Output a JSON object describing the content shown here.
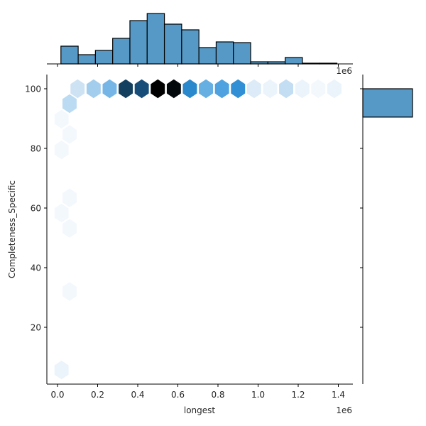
{
  "chart_data": {
    "type": "hexbin-jointplot",
    "title": "",
    "xlabel": "longest",
    "ylabel": "Completeness_Specific",
    "x_offset_text": "1e6",
    "top_offset_text": "1e6",
    "xlim": [
      -0.06,
      1.47
    ],
    "ylim": [
      1.0,
      104.8
    ],
    "x_scale_note": "x values in units of 1e6",
    "xticks": [
      0.0,
      0.2,
      0.4,
      0.6,
      0.8,
      1.0,
      1.2,
      1.4
    ],
    "xtick_labels": [
      "0.0",
      "0.2",
      "0.4",
      "0.6",
      "0.8",
      "1.0",
      "1.2",
      "1.4"
    ],
    "yticks": [
      20,
      40,
      60,
      80,
      100
    ],
    "ytick_labels": [
      "20",
      "40",
      "60",
      "80",
      "100"
    ],
    "grid": false,
    "hexbins": {
      "colormap": "Blues (light to dark, near-black max)",
      "cells": [
        {
          "x": 0.1,
          "y": 100.0,
          "color": "#cde2f3"
        },
        {
          "x": 0.18,
          "y": 100.0,
          "color": "#a3cdec"
        },
        {
          "x": 0.26,
          "y": 100.0,
          "color": "#76b6e6"
        },
        {
          "x": 0.34,
          "y": 100.0,
          "color": "#143f5f"
        },
        {
          "x": 0.42,
          "y": 100.0,
          "color": "#174e79"
        },
        {
          "x": 0.5,
          "y": 100.0,
          "color": "#000000"
        },
        {
          "x": 0.58,
          "y": 100.0,
          "color": "#03080c"
        },
        {
          "x": 0.66,
          "y": 100.0,
          "color": "#2a88cc"
        },
        {
          "x": 0.74,
          "y": 100.0,
          "color": "#66afe2"
        },
        {
          "x": 0.82,
          "y": 100.0,
          "color": "#4ea2df"
        },
        {
          "x": 0.9,
          "y": 100.0,
          "color": "#318fd5"
        },
        {
          "x": 0.98,
          "y": 100.0,
          "color": "#dcebf7"
        },
        {
          "x": 1.06,
          "y": 100.0,
          "color": "#ebf4fb"
        },
        {
          "x": 1.14,
          "y": 100.0,
          "color": "#c3ddf2"
        },
        {
          "x": 1.22,
          "y": 100.0,
          "color": "#ebf4fb"
        },
        {
          "x": 1.3,
          "y": 100.0,
          "color": "#f3f8fd"
        },
        {
          "x": 1.38,
          "y": 100.0,
          "color": "#ebf4fb"
        },
        {
          "x": 0.06,
          "y": 95.0,
          "color": "#badbf1"
        },
        {
          "x": 0.02,
          "y": 89.8,
          "color": "#f3f8fd"
        },
        {
          "x": 0.06,
          "y": 84.7,
          "color": "#f3f8fd"
        },
        {
          "x": 0.02,
          "y": 79.5,
          "color": "#f3f8fd"
        },
        {
          "x": 0.06,
          "y": 63.4,
          "color": "#f3f8fd"
        },
        {
          "x": 0.02,
          "y": 58.3,
          "color": "#f3f8fd"
        },
        {
          "x": 0.06,
          "y": 53.2,
          "color": "#f3f8fd"
        },
        {
          "x": 0.06,
          "y": 32.0,
          "color": "#f3f8fd"
        },
        {
          "x": 0.02,
          "y": 5.7,
          "color": "#ebf4fb"
        }
      ]
    },
    "marginal_x": {
      "type": "histogram",
      "color": "#5799c6",
      "bin_edges": [
        0.017,
        0.103,
        0.189,
        0.275,
        0.361,
        0.447,
        0.533,
        0.619,
        0.705,
        0.791,
        0.877,
        0.963,
        1.049,
        1.135,
        1.221,
        1.307,
        1.393
      ],
      "relative_heights": [
        25,
        13,
        19,
        36,
        61,
        71,
        56,
        48,
        23,
        31,
        30,
        3,
        3,
        9,
        1,
        1
      ]
    },
    "marginal_y": {
      "type": "histogram",
      "color": "#5799c6",
      "bins": [
        {
          "y_from": 90.5,
          "y_to": 100.0,
          "relative_width": 70
        }
      ]
    }
  }
}
